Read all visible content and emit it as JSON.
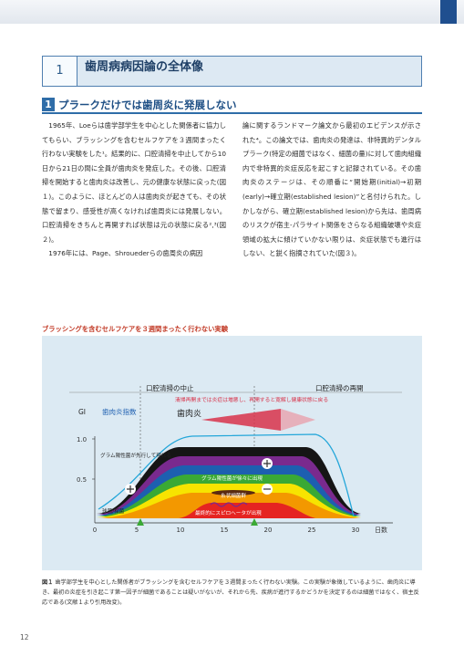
{
  "chapter": {
    "number": "1",
    "title": "歯周病病因論の全体像"
  },
  "section": {
    "number": "1",
    "title": "プラークだけでは歯周炎に発展しない"
  },
  "left_paragraphs": [
    "1965年、Loeらは歯学部学生を中心とした関係者に協力してもらい、ブラッシングを含むセルフケアを３週間まったく行わない実験をした¹。結果的に、口腔清掃を中止してから10日から21日の間に全員が歯肉炎を発症した。その後、口腔清掃を開始すると歯肉炎は改善し、元の健康な状態に戻った(図１)。このように、ほとんどの人は歯肉炎が起きても、その状態で留まり、感受性が高くなければ歯周炎には発展しない。口腔清掃をきちんと再開すれば状態は元の状態に戻る²,³(図２)。",
    "1976年には、Page、Shrouederらの歯周炎の病因"
  ],
  "right_paragraphs": [
    "論に関するランドマーク論文から最初のエビデンスが示された⁴。この論文では、歯肉炎の発達は、非特異的デンタルプラーク(特定の細菌ではなく、細菌の量)に対して歯肉組織内で非特異的炎症反応を起こすと記録されている。その歯肉炎のステージは、その順番に“開始期(initial)→初期(early)→確立期(established lesion)”と名付けられた。しかしながら、確立期(established lesion)から先は、歯周病のリスクが宿主‐パラサイト関係をさらなる組織破壊や炎症領域の拡大に傾けていかない限りは、炎症状態でも進行はしない、と鋭く指摘されていた(図３)。"
  ],
  "figure": {
    "heading": "ブラッシングを含むセルフケアを３週間まったく行わない実験",
    "label_stop": "口腔清掃の中止",
    "label_resume": "口腔清掃の再開",
    "note": "清掃再開までは炎症は増悪し、再開すると寛解し健康状態に戻る",
    "gi_label": "GI",
    "gingival_index_label": "歯肉炎指数",
    "gingivitis_label": "歯肉炎",
    "gram_pos_label": "グラム陽性菌が先行して現れる",
    "gram_neg_label": "グラム陽性菌が徐々に出現",
    "filament_label": "糸状細菌群",
    "spirochete_label": "最終的にスピロヘータが出現",
    "cocci_label": "球菌/桿菌",
    "x_unit": "日数",
    "y_ticks": [
      "1.0",
      "0.5"
    ],
    "x_ticks": [
      "0",
      "5",
      "10",
      "15",
      "20",
      "25",
      "30"
    ],
    "colors": {
      "red": "#e52421",
      "orange": "#f39800",
      "yellow": "#f7e400",
      "green": "#3aa935",
      "blue": "#1d5fb0",
      "purple": "#7a2a8e",
      "black": "#151515",
      "gi_line": "#23a6d9",
      "gingiva": "#d8334a"
    }
  },
  "caption": {
    "label": "図１",
    "text": "歯学部学生を中心とした関係者がブラッシングを含むセルフケアを３週間まったく行わない実験。この実験が象徴しているように、歯肉炎に導き、最初の炎症を引き起こす第一因子が細菌であることは疑いがないが、それから先、疾病が進行するかどうかを決定するのは細菌ではなく、宿主反応である(文献１より引用改変)。"
  },
  "page_number": "12"
}
